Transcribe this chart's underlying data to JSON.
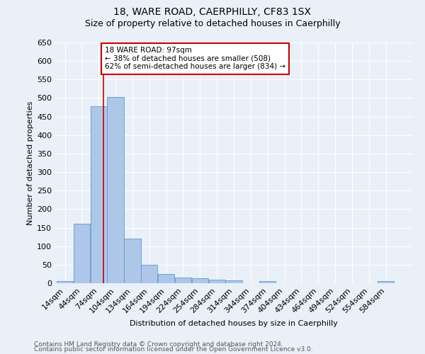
{
  "title": "18, WARE ROAD, CAERPHILLY, CF83 1SX",
  "subtitle": "Size of property relative to detached houses in Caerphilly",
  "xlabel": "Distribution of detached houses by size in Caerphilly",
  "ylabel": "Number of detached properties",
  "bin_edges": [
    14,
    44,
    74,
    104,
    134,
    164,
    194,
    224,
    254,
    284,
    314,
    344,
    374,
    404,
    434,
    464,
    494,
    524,
    554,
    584,
    614
  ],
  "counts": [
    5,
    160,
    478,
    503,
    120,
    50,
    25,
    15,
    13,
    10,
    8,
    0,
    5,
    0,
    0,
    0,
    0,
    0,
    0,
    5
  ],
  "property_line_x": 97,
  "bar_color": "#aec6e8",
  "bar_edge_color": "#5b9bd5",
  "line_color": "#cc0000",
  "annotation_text": "18 WARE ROAD: 97sqm\n← 38% of detached houses are smaller (508)\n62% of semi-detached houses are larger (834) →",
  "annotation_box_color": "#ffffff",
  "annotation_box_edge": "#cc0000",
  "ylim": [
    0,
    650
  ],
  "yticks": [
    0,
    50,
    100,
    150,
    200,
    250,
    300,
    350,
    400,
    450,
    500,
    550,
    600,
    650
  ],
  "footer1": "Contains HM Land Registry data © Crown copyright and database right 2024.",
  "footer2": "Contains public sector information licensed under the Open Government Licence v3.0.",
  "background_color": "#eaf0f8",
  "grid_color": "#ffffff",
  "title_fontsize": 10,
  "subtitle_fontsize": 9,
  "axis_label_fontsize": 8,
  "tick_label_size": 8,
  "footer_fontsize": 6.5,
  "annotation_fontsize": 7.5
}
